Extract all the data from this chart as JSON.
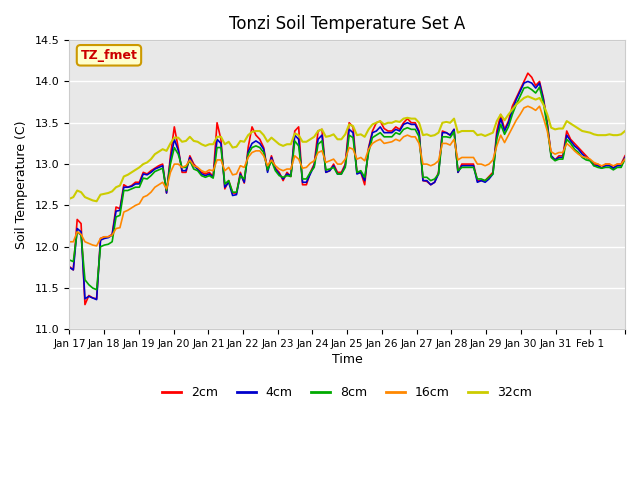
{
  "title": "Tonzi Soil Temperature Set A",
  "xlabel": "Time",
  "ylabel": "Soil Temperature (C)",
  "ylim": [
    11.0,
    14.5
  ],
  "annotation_text": "TZ_fmet",
  "annotation_color": "#cc0000",
  "annotation_bg": "#ffffcc",
  "annotation_border": "#cc9900",
  "series_colors": {
    "2cm": "#ff0000",
    "4cm": "#0000cc",
    "8cm": "#00aa00",
    "16cm": "#ff8800",
    "32cm": "#cccc00"
  },
  "bg_color": "#e8e8e8",
  "grid_color": "#ffffff",
  "tick_labels": [
    "Jan 17",
    "Jan 18",
    "Jan 19",
    "Jan 20",
    "Jan 21",
    "Jan 22",
    "Jan 23",
    "Jan 24",
    "Jan 25",
    "Jan 26",
    "Jan 27",
    "Jan 28",
    "Jan 29",
    "Jan 30",
    "Jan 31",
    "Feb 1"
  ],
  "t_2cm": [
    11.76,
    11.72,
    12.33,
    12.28,
    11.3,
    11.41,
    11.38,
    11.37,
    12.1,
    12.12,
    12.12,
    12.15,
    12.48,
    12.46,
    12.75,
    12.72,
    12.74,
    12.78,
    12.78,
    12.9,
    12.88,
    12.92,
    12.95,
    12.98,
    13.0,
    12.65,
    13.1,
    13.45,
    13.2,
    12.9,
    12.9,
    13.1,
    13.0,
    12.95,
    12.9,
    12.88,
    12.9,
    12.85,
    13.5,
    13.3,
    12.7,
    12.8,
    12.65,
    12.65,
    12.9,
    12.77,
    13.2,
    13.45,
    13.35,
    13.3,
    13.2,
    12.92,
    13.1,
    12.95,
    12.9,
    12.8,
    12.9,
    12.85,
    13.4,
    13.45,
    12.75,
    12.75,
    12.9,
    13.0,
    13.4,
    13.42,
    12.9,
    12.92,
    13.0,
    12.9,
    12.9,
    13.0,
    13.5,
    13.45,
    12.9,
    12.9,
    12.75,
    13.2,
    13.4,
    13.5,
    13.52,
    13.43,
    13.4,
    13.4,
    13.45,
    13.42,
    13.5,
    13.55,
    13.5,
    13.5,
    13.4,
    12.8,
    12.79,
    12.75,
    12.78,
    12.9,
    13.4,
    13.38,
    13.35,
    13.42,
    12.9,
    13.0,
    13.0,
    13.0,
    13.0,
    12.8,
    12.8,
    12.8,
    12.85,
    12.9,
    13.4,
    13.6,
    13.42,
    13.52,
    13.7,
    13.8,
    13.9,
    14.0,
    14.1,
    14.05,
    13.95,
    14.0,
    13.8,
    13.5,
    13.1,
    13.05,
    13.1,
    13.1,
    13.4,
    13.3,
    13.25,
    13.2,
    13.15,
    13.1,
    13.05,
    13.0,
    13.0,
    12.95,
    13.0,
    13.0,
    12.95,
    13.0,
    13.0,
    13.1
  ],
  "t_4cm": [
    11.75,
    11.72,
    12.22,
    12.18,
    11.37,
    11.4,
    11.38,
    11.36,
    12.08,
    12.1,
    12.11,
    12.14,
    12.43,
    12.44,
    12.72,
    12.72,
    12.73,
    12.76,
    12.76,
    12.88,
    12.87,
    12.9,
    12.94,
    12.96,
    12.98,
    12.65,
    13.05,
    13.3,
    13.17,
    12.92,
    12.92,
    13.08,
    12.98,
    12.94,
    12.88,
    12.86,
    12.88,
    12.84,
    13.3,
    13.25,
    12.72,
    12.78,
    12.62,
    12.63,
    12.88,
    12.78,
    13.15,
    13.25,
    13.28,
    13.25,
    13.18,
    12.9,
    13.08,
    12.94,
    12.88,
    12.82,
    12.88,
    12.86,
    13.35,
    13.3,
    12.78,
    12.78,
    12.88,
    12.98,
    13.3,
    13.35,
    12.9,
    12.92,
    12.98,
    12.88,
    12.88,
    12.98,
    13.42,
    13.38,
    12.88,
    12.9,
    12.8,
    13.18,
    13.38,
    13.4,
    13.45,
    13.38,
    13.38,
    13.38,
    13.42,
    13.4,
    13.48,
    13.5,
    13.48,
    13.48,
    13.38,
    12.8,
    12.8,
    12.75,
    12.78,
    12.88,
    13.38,
    13.38,
    13.35,
    13.42,
    12.9,
    12.98,
    12.98,
    12.98,
    12.98,
    12.78,
    12.8,
    12.78,
    12.82,
    12.88,
    13.35,
    13.55,
    13.4,
    13.5,
    13.65,
    13.78,
    13.88,
    13.98,
    14.0,
    13.98,
    13.92,
    13.98,
    13.78,
    13.48,
    13.1,
    13.05,
    13.08,
    13.08,
    13.35,
    13.28,
    13.22,
    13.18,
    13.12,
    13.08,
    13.05,
    12.98,
    12.98,
    12.95,
    12.98,
    12.98,
    12.95,
    12.98,
    12.98,
    13.08
  ],
  "t_8cm": [
    11.84,
    11.82,
    12.18,
    12.14,
    11.6,
    11.54,
    11.5,
    11.48,
    12.0,
    12.02,
    12.03,
    12.06,
    12.36,
    12.38,
    12.68,
    12.68,
    12.7,
    12.72,
    12.72,
    12.83,
    12.82,
    12.86,
    12.91,
    12.93,
    12.95,
    12.68,
    13.0,
    13.2,
    13.12,
    12.96,
    12.96,
    13.04,
    12.94,
    12.92,
    12.86,
    12.84,
    12.86,
    12.83,
    13.2,
    13.2,
    12.76,
    12.8,
    12.66,
    12.66,
    12.86,
    12.82,
    13.12,
    13.2,
    13.22,
    13.2,
    13.14,
    12.93,
    13.04,
    12.92,
    12.86,
    12.84,
    12.86,
    12.85,
    13.28,
    13.22,
    12.82,
    12.82,
    12.9,
    12.96,
    13.24,
    13.28,
    12.93,
    12.94,
    12.96,
    12.88,
    12.88,
    12.96,
    13.35,
    13.32,
    12.9,
    12.92,
    12.84,
    13.14,
    13.32,
    13.35,
    13.38,
    13.33,
    13.33,
    13.33,
    13.38,
    13.36,
    13.42,
    13.44,
    13.42,
    13.42,
    13.33,
    12.84,
    12.84,
    12.8,
    12.82,
    12.88,
    13.33,
    13.33,
    13.32,
    13.39,
    12.92,
    12.96,
    12.96,
    12.96,
    12.96,
    12.82,
    12.82,
    12.8,
    12.84,
    12.88,
    13.3,
    13.48,
    13.36,
    13.45,
    13.6,
    13.72,
    13.82,
    13.92,
    13.93,
    13.9,
    13.86,
    13.93,
    13.74,
    13.45,
    13.08,
    13.04,
    13.06,
    13.06,
    13.3,
    13.25,
    13.18,
    13.14,
    13.08,
    13.05,
    13.04,
    12.98,
    12.96,
    12.95,
    12.96,
    12.96,
    12.93,
    12.96,
    12.96,
    13.06
  ],
  "t_16cm": [
    12.06,
    12.06,
    12.18,
    12.15,
    12.06,
    12.04,
    12.02,
    12.01,
    12.1,
    12.12,
    12.12,
    12.14,
    12.22,
    12.23,
    12.42,
    12.44,
    12.47,
    12.5,
    12.52,
    12.6,
    12.62,
    12.66,
    12.72,
    12.75,
    12.78,
    12.7,
    12.9,
    13.0,
    13.0,
    12.96,
    12.98,
    13.05,
    12.98,
    12.96,
    12.92,
    12.9,
    12.93,
    12.92,
    13.05,
    13.05,
    12.92,
    12.96,
    12.87,
    12.88,
    12.98,
    12.96,
    13.08,
    13.14,
    13.16,
    13.16,
    13.1,
    12.98,
    13.05,
    12.98,
    12.94,
    12.92,
    12.94,
    12.94,
    13.1,
    13.06,
    12.95,
    12.96,
    13.01,
    13.04,
    13.14,
    13.16,
    13.02,
    13.04,
    13.06,
    13.0,
    13.0,
    13.06,
    13.2,
    13.18,
    13.06,
    13.08,
    13.04,
    13.18,
    13.25,
    13.28,
    13.3,
    13.25,
    13.26,
    13.27,
    13.3,
    13.28,
    13.33,
    13.35,
    13.33,
    13.33,
    13.25,
    13.0,
    13.0,
    12.98,
    13.0,
    13.04,
    13.25,
    13.25,
    13.23,
    13.3,
    13.05,
    13.08,
    13.08,
    13.08,
    13.08,
    13.0,
    13.0,
    12.98,
    13.0,
    13.05,
    13.22,
    13.35,
    13.26,
    13.35,
    13.44,
    13.53,
    13.6,
    13.68,
    13.7,
    13.68,
    13.65,
    13.7,
    13.56,
    13.4,
    13.15,
    13.12,
    13.14,
    13.14,
    13.25,
    13.21,
    13.16,
    13.12,
    13.09,
    13.08,
    13.06,
    13.02,
    13.0,
    12.98,
    13.0,
    13.0,
    12.98,
    13.0,
    13.0,
    13.06
  ],
  "t_32cm": [
    12.58,
    12.6,
    12.68,
    12.66,
    12.6,
    12.58,
    12.56,
    12.55,
    12.63,
    12.64,
    12.65,
    12.67,
    12.72,
    12.74,
    12.85,
    12.87,
    12.9,
    12.93,
    12.96,
    13.0,
    13.02,
    13.06,
    13.12,
    13.15,
    13.18,
    13.16,
    13.25,
    13.32,
    13.32,
    13.27,
    13.28,
    13.33,
    13.28,
    13.27,
    13.24,
    13.22,
    13.24,
    13.24,
    13.33,
    13.33,
    13.24,
    13.27,
    13.2,
    13.21,
    13.28,
    13.27,
    13.35,
    13.39,
    13.4,
    13.4,
    13.35,
    13.27,
    13.32,
    13.28,
    13.24,
    13.22,
    13.24,
    13.24,
    13.37,
    13.35,
    13.27,
    13.27,
    13.3,
    13.33,
    13.4,
    13.42,
    13.33,
    13.34,
    13.36,
    13.3,
    13.3,
    13.36,
    13.48,
    13.46,
    13.35,
    13.36,
    13.33,
    13.42,
    13.48,
    13.5,
    13.52,
    13.48,
    13.5,
    13.5,
    13.52,
    13.51,
    13.55,
    13.56,
    13.55,
    13.55,
    13.5,
    13.35,
    13.36,
    13.34,
    13.35,
    13.38,
    13.5,
    13.51,
    13.5,
    13.55,
    13.38,
    13.4,
    13.4,
    13.4,
    13.4,
    13.35,
    13.36,
    13.34,
    13.36,
    13.38,
    13.52,
    13.6,
    13.53,
    13.6,
    13.66,
    13.72,
    13.76,
    13.8,
    13.82,
    13.8,
    13.78,
    13.8,
    13.72,
    13.6,
    13.44,
    13.42,
    13.43,
    13.43,
    13.52,
    13.49,
    13.46,
    13.43,
    13.4,
    13.39,
    13.38,
    13.36,
    13.35,
    13.35,
    13.35,
    13.36,
    13.35,
    13.35,
    13.36,
    13.4
  ]
}
